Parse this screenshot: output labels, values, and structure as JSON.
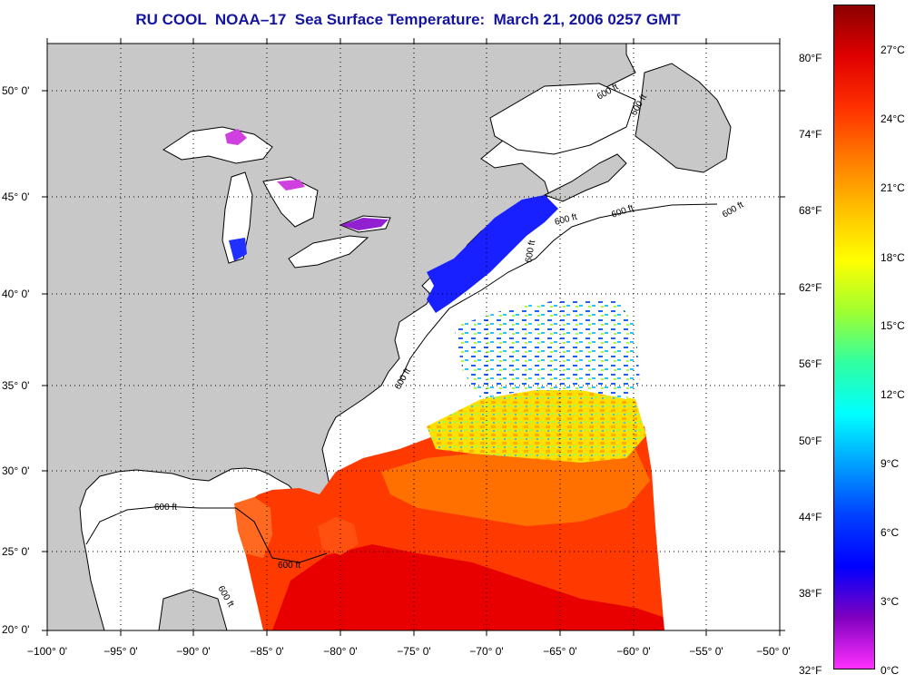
{
  "title": "RU COOL  NOAA–17  Sea Surface Temperature:  March 21, 2006 0257 GMT",
  "map": {
    "lat_labels": [
      "50° 0'",
      "45° 0'",
      "40° 0'",
      "35° 0'",
      "30° 0'",
      "25° 0'",
      "20° 0'"
    ],
    "lon_labels": [
      "−100° 0'",
      "−95° 0'",
      "−90° 0'",
      "−85° 0'",
      "−80° 0'",
      "−75° 0'",
      "−70° 0'",
      "−65° 0'",
      "−60° 0'",
      "−55° 0'",
      "−50° 0'"
    ],
    "contour_labels": [
      "600 ft",
      "600 ft",
      "600 ft",
      "600 ft",
      "600 ft",
      "600 ft",
      "600 ft",
      "600 ft",
      "600 ft",
      "600 ft"
    ],
    "land_color": "#c8c8c8",
    "ocean_no_data_color": "#ffffff"
  },
  "colorbar": {
    "fahrenheit_labels": [
      "80°F",
      "74°F",
      "68°F",
      "62°F",
      "56°F",
      "50°F",
      "44°F",
      "38°F",
      "32°F"
    ],
    "celsius_labels": [
      "27°C",
      "24°C",
      "21°C",
      "18°C",
      "15°C",
      "12°C",
      "9°C",
      "6°C",
      "3°C",
      "0°C"
    ],
    "colors": [
      "#8b0000",
      "#e00000",
      "#ff3000",
      "#ff7a00",
      "#ffc000",
      "#ffff00",
      "#a0ff30",
      "#30ffa0",
      "#00ffff",
      "#00a0ff",
      "#0040ff",
      "#0000ff",
      "#8000c0",
      "#ff30ff"
    ]
  }
}
